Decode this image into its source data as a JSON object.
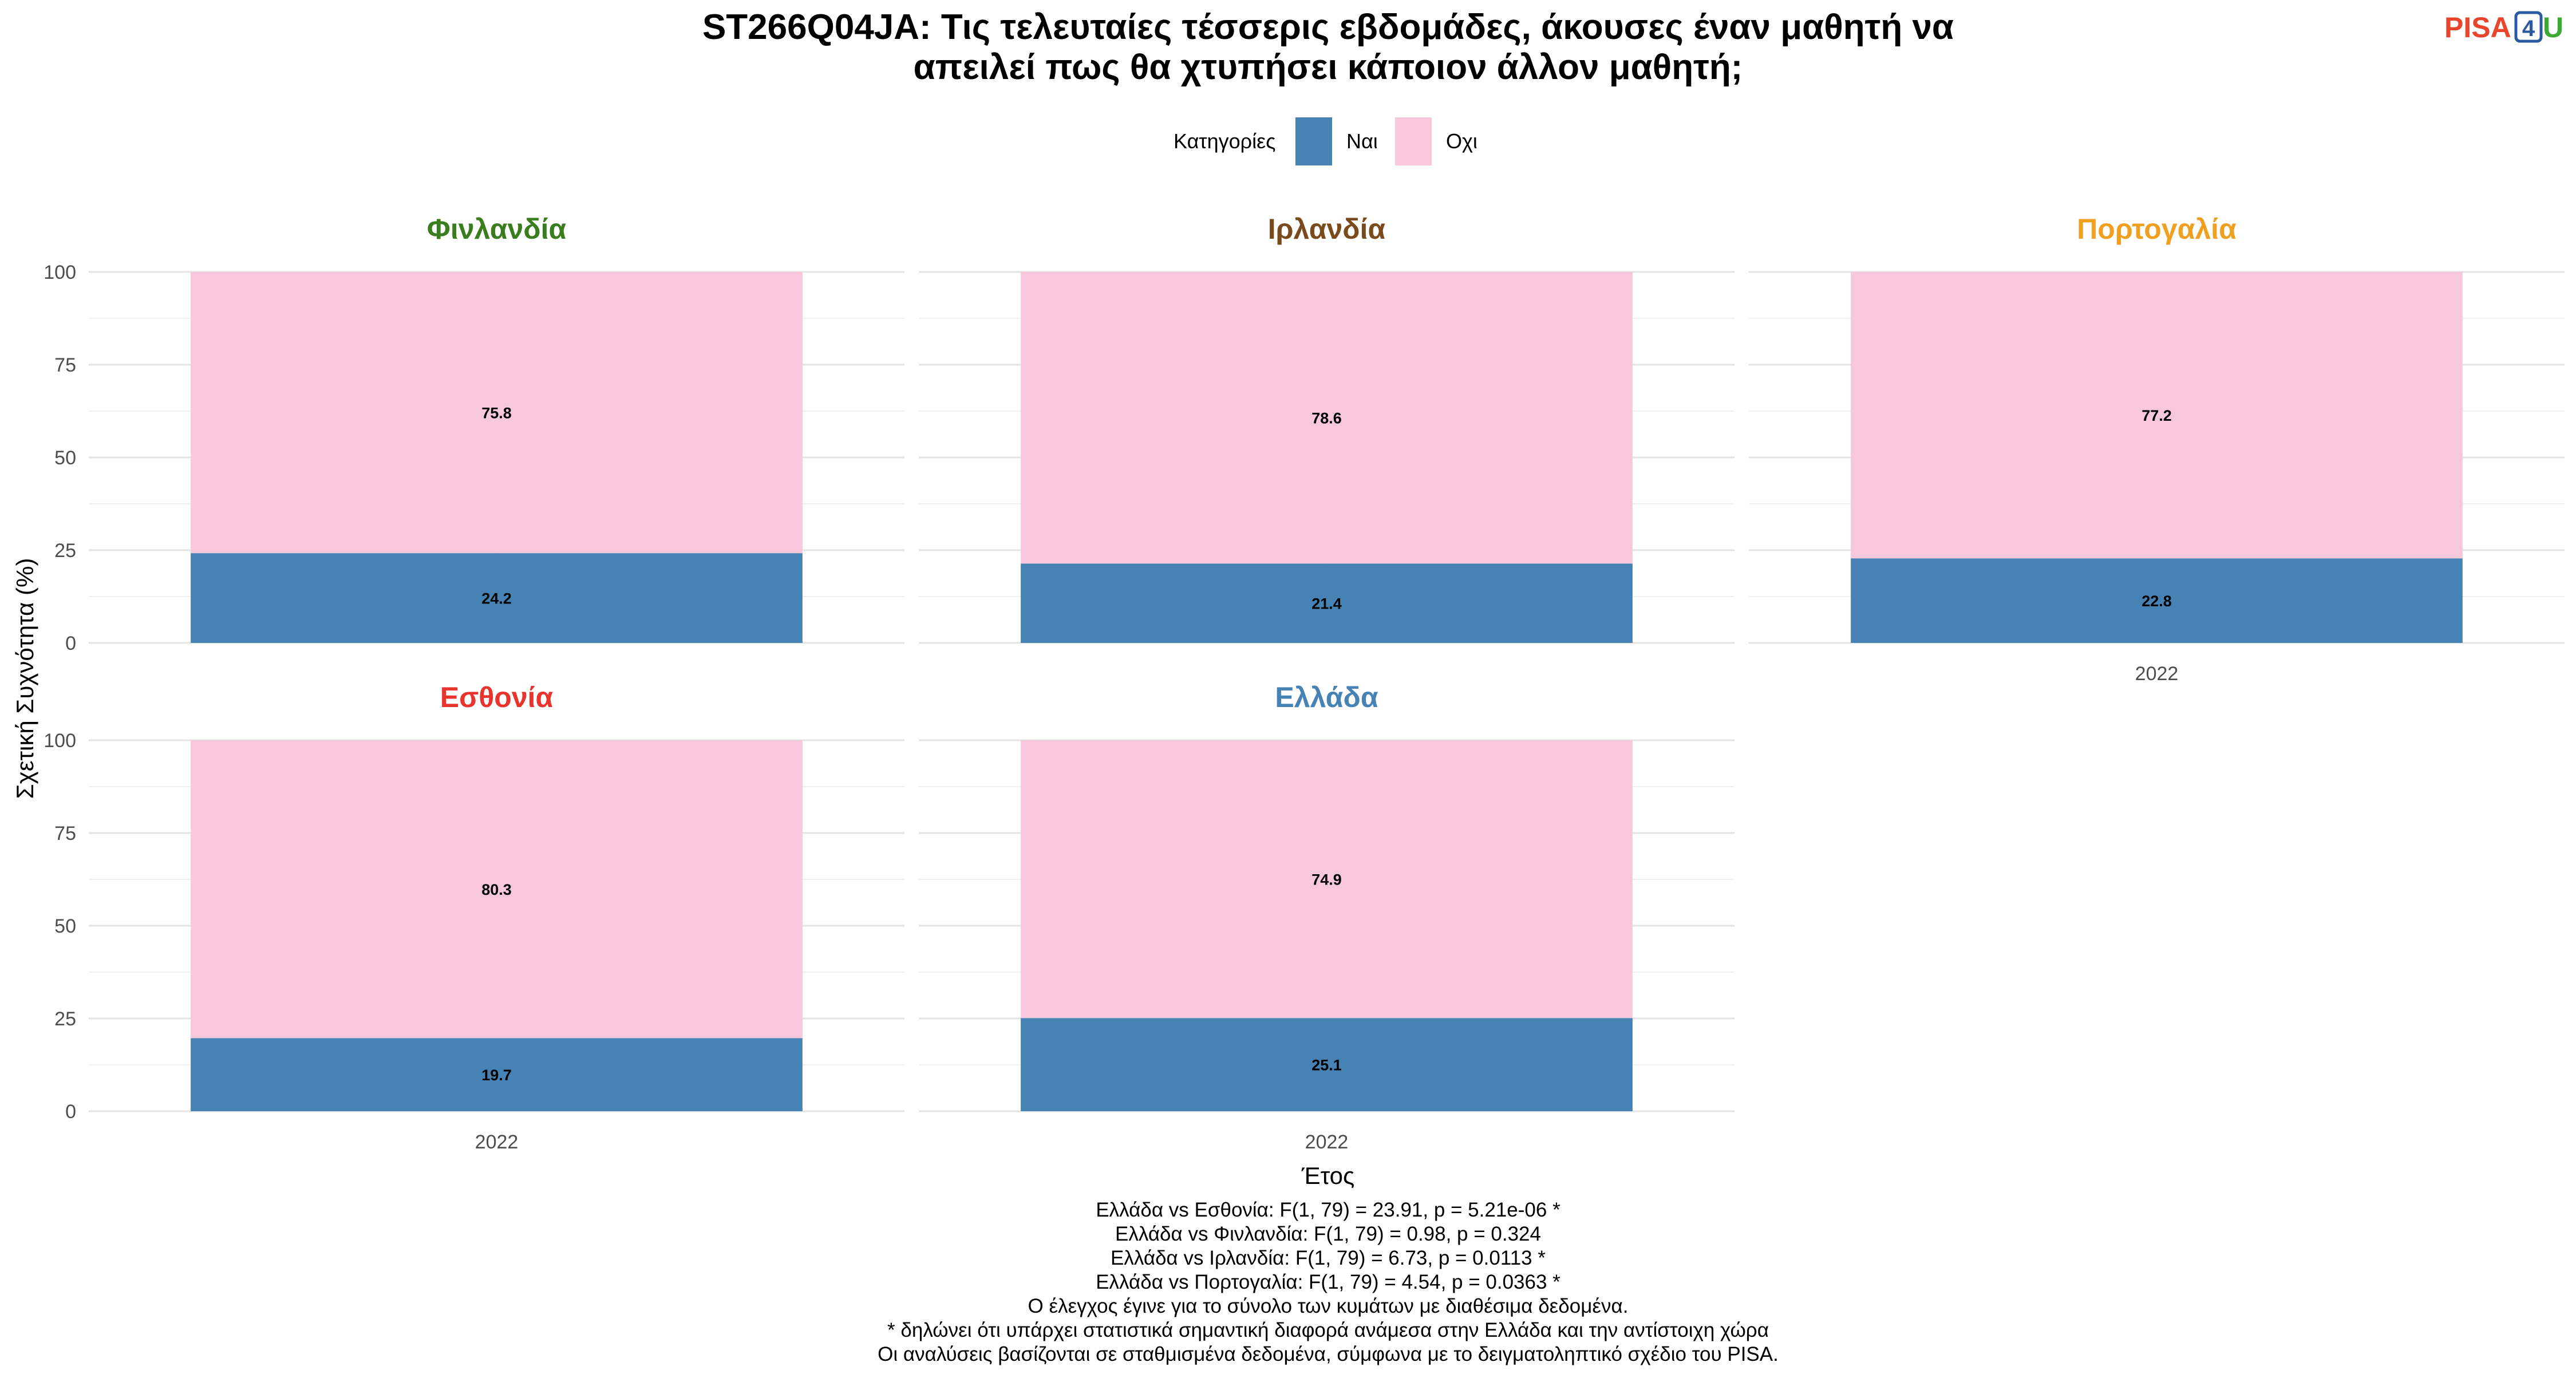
{
  "title_lines": [
    "ST266Q04JA: Τις τελευταίες τέσσερις εβδομάδες, άκουσες έναν μαθητή να",
    "απειλεί πως θα χτυπήσει κάποιον άλλον μαθητή;"
  ],
  "logo": {
    "parts": [
      {
        "text": "PISA",
        "color": "#e8452c"
      },
      {
        "text": "4",
        "color": "#2c5aa0",
        "boxed": true
      },
      {
        "text": "U",
        "color": "#3aaa35"
      }
    ]
  },
  "legend": {
    "title": "Κατηγορίες",
    "position": "top",
    "items": [
      {
        "label": "Ναι",
        "color": "#4682b4"
      },
      {
        "label": "Οχι",
        "color": "#f7c8dc"
      }
    ]
  },
  "chart_data": {
    "type": "bar",
    "stacked": true,
    "xlabel": "Έτος",
    "ylabel": "Σχετική Συχνότητα (%)",
    "ylim": [
      0,
      100
    ],
    "yticks": [
      0,
      25,
      50,
      75,
      100
    ],
    "grid": true,
    "categories": [
      "2022"
    ],
    "facets": [
      {
        "name": "Φινλανδία",
        "color": "#3a7d1e",
        "series": [
          {
            "name": "Ναι",
            "values": [
              24.2
            ]
          },
          {
            "name": "Οχι",
            "values": [
              75.8
            ]
          }
        ]
      },
      {
        "name": "Ιρλανδία",
        "color": "#7b4a1c",
        "series": [
          {
            "name": "Ναι",
            "values": [
              21.4
            ]
          },
          {
            "name": "Οχι",
            "values": [
              78.6
            ]
          }
        ]
      },
      {
        "name": "Πορτογαλία",
        "color": "#f0a020",
        "series": [
          {
            "name": "Ναι",
            "values": [
              22.8
            ]
          },
          {
            "name": "Οχι",
            "values": [
              77.2
            ]
          }
        ]
      },
      {
        "name": "Εσθονία",
        "color": "#e8342c",
        "series": [
          {
            "name": "Ναι",
            "values": [
              19.7
            ]
          },
          {
            "name": "Οχι",
            "values": [
              80.3
            ]
          }
        ]
      },
      {
        "name": "Ελλάδα",
        "color": "#4682b4",
        "series": [
          {
            "name": "Ναι",
            "values": [
              25.1
            ]
          },
          {
            "name": "Οχι",
            "values": [
              74.9
            ]
          }
        ]
      }
    ]
  },
  "notes": [
    "Ελλάδα vs Εσθονία: F(1, 79) = 23.91, p = 5.21e-06 *",
    "Ελλάδα vs Φινλανδία: F(1, 79) = 0.98, p = 0.324",
    "Ελλάδα vs Ιρλανδία: F(1, 79) = 6.73, p = 0.0113 *",
    "Ελλάδα vs Πορτογαλία: F(1, 79) = 4.54, p = 0.0363 *",
    "Ο έλεγχος έγινε για το σύνολο των κυμάτων με διαθέσιμα δεδομένα.",
    "* δηλώνει ότι υπάρχει στατιστικά σημαντική διαφορά ανάμεσα στην Ελλάδα και την αντίστοιχη χώρα",
    "Οι αναλύσεις βασίζονται σε σταθμισμένα δεδομένα, σύμφωνα με το δειγματοληπτικό σχέδιο του PISA."
  ]
}
